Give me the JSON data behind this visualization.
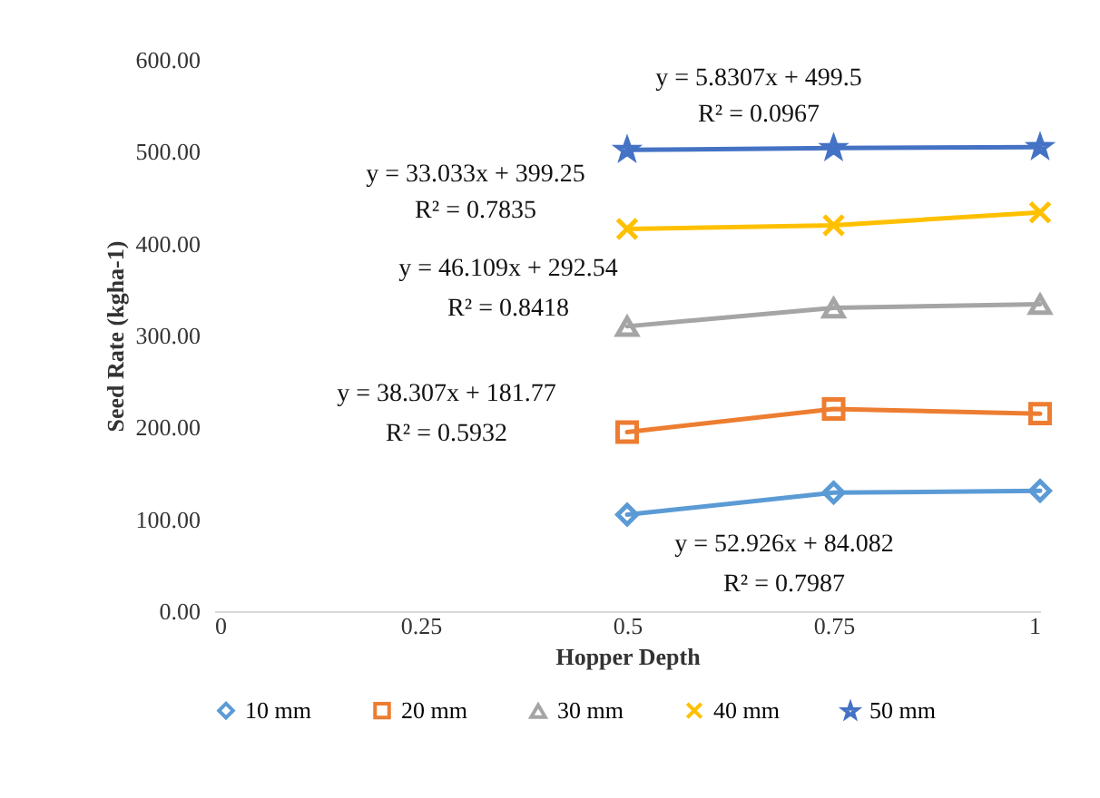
{
  "chart_data": {
    "type": "line",
    "xlabel": "Hopper Depth",
    "ylabel": "Seed Rate (kgha-1)",
    "x": [
      0.5,
      0.75,
      1
    ],
    "xlim": [
      0,
      1
    ],
    "xticks": [
      0,
      0.25,
      0.5,
      0.75,
      1
    ],
    "ylim": [
      0,
      600
    ],
    "yticks": [
      {
        "value": 0,
        "label": "0.00"
      },
      {
        "value": 100,
        "label": "100.00"
      },
      {
        "value": 200,
        "label": "200.00"
      },
      {
        "value": 300,
        "label": "300.00"
      },
      {
        "value": 400,
        "label": "400.00"
      },
      {
        "value": 500,
        "label": "500.00"
      },
      {
        "value": 600,
        "label": "600.00"
      }
    ],
    "grid": false,
    "legend": "bottom",
    "series": [
      {
        "name": "10 mm",
        "color": "#5b9bd5",
        "marker": "diamond",
        "values": [
          105,
          129,
          131
        ]
      },
      {
        "name": "20 mm",
        "color": "#ed7d31",
        "marker": "square",
        "values": [
          195,
          220,
          215
        ]
      },
      {
        "name": "30 mm",
        "color": "#a5a5a5",
        "marker": "triangle",
        "values": [
          310,
          330,
          334
        ]
      },
      {
        "name": "40 mm",
        "color": "#ffc000",
        "marker": "cross",
        "values": [
          416,
          420,
          434
        ]
      },
      {
        "name": "50 mm",
        "color": "#4472c4",
        "marker": "star",
        "values": [
          502,
          504,
          505
        ]
      }
    ],
    "annotations": [
      "y = 5.8307x + 499.5",
      "R² = 0.0967",
      "y = 33.033x + 399.25",
      "R² = 0.7835",
      "y = 46.109x + 292.54",
      "R² = 0.8418",
      "y = 38.307x + 181.77",
      "R² = 0.5932",
      "y = 52.926x + 84.082",
      "R² = 0.7987"
    ]
  }
}
